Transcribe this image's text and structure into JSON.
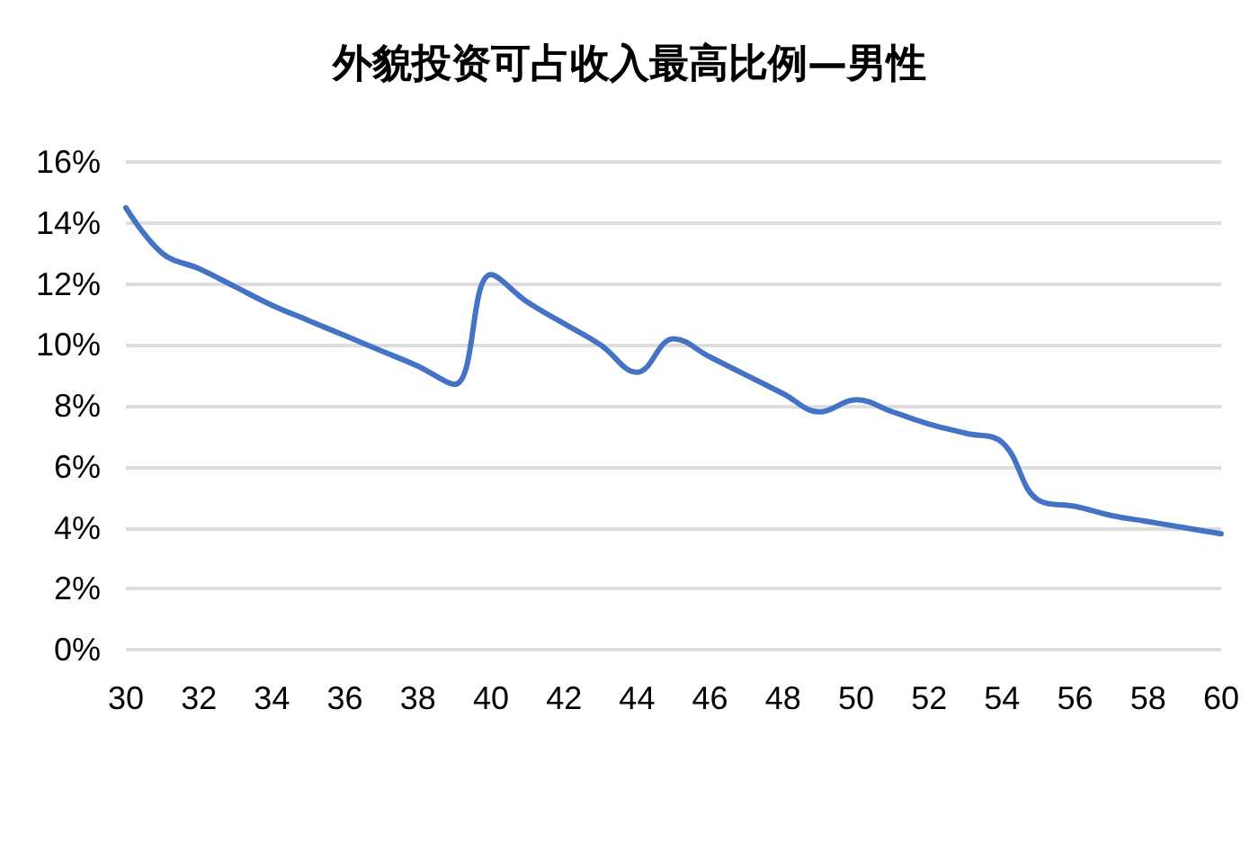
{
  "chart_data": {
    "type": "line",
    "title": "外貌投资可占收入最高比例—男性",
    "x": [
      30,
      31,
      32,
      33,
      34,
      35,
      36,
      37,
      38,
      39,
      40,
      41,
      42,
      43,
      44,
      45,
      46,
      47,
      48,
      49,
      50,
      51,
      52,
      53,
      54,
      55,
      56,
      57,
      58,
      59,
      60
    ],
    "series": [
      {
        "color": "#4472c4",
        "values": [
          14.5,
          13.0,
          12.5,
          11.9,
          11.3,
          10.8,
          10.3,
          9.8,
          9.3,
          8.7,
          12.3,
          11.4,
          10.7,
          10.0,
          9.1,
          10.2,
          9.6,
          9.0,
          8.4,
          7.8,
          8.2,
          7.8,
          7.4,
          7.1,
          6.8,
          4.9,
          4.7,
          4.4,
          4.2,
          4.0,
          3.8
        ]
      }
    ],
    "xlim": [
      30,
      60
    ],
    "xticks": [
      30,
      32,
      34,
      36,
      38,
      40,
      42,
      44,
      46,
      48,
      50,
      52,
      54,
      56,
      58,
      60
    ],
    "ylim": [
      0,
      16
    ],
    "yticks": [
      {
        "value": 0,
        "label": "0%"
      },
      {
        "value": 2,
        "label": "2%"
      },
      {
        "value": 4,
        "label": "4%"
      },
      {
        "value": 6,
        "label": "6%"
      },
      {
        "value": 8,
        "label": "8%"
      },
      {
        "value": 10,
        "label": "10%"
      },
      {
        "value": 12,
        "label": "12%"
      },
      {
        "value": 14,
        "label": "14%"
      },
      {
        "value": 16,
        "label": "16%"
      }
    ],
    "grid": "y",
    "marker": "none",
    "line_style": "solid"
  }
}
